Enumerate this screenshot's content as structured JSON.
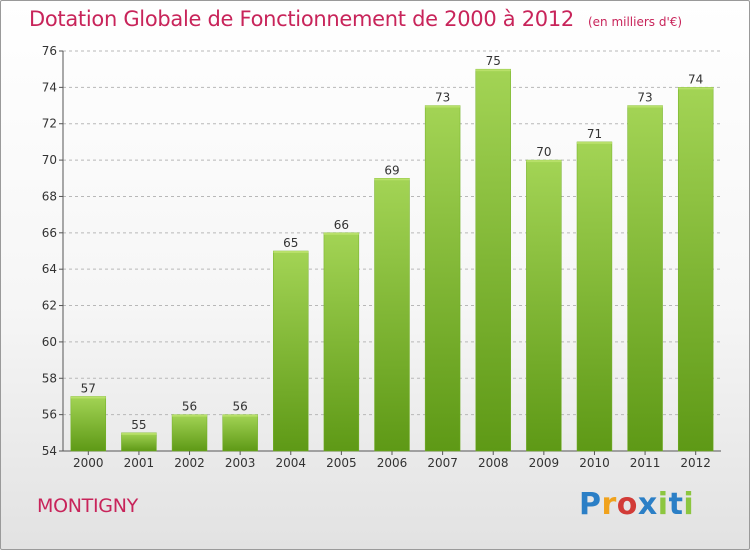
{
  "header": {
    "title": "Dotation Globale de Fonctionnement de 2000 à 2012",
    "unit": "(en milliers d'€)"
  },
  "footer": {
    "commune": "MONTIGNY",
    "logo": "Proxiti"
  },
  "colors": {
    "title": "#c8245a",
    "bar_light": "#9ccf4e",
    "bar_dark": "#5f9a18",
    "grid": "#b8b8b8"
  },
  "chart_data": {
    "type": "bar",
    "categories": [
      "2000",
      "2001",
      "2002",
      "2003",
      "2004",
      "2005",
      "2006",
      "2007",
      "2008",
      "2009",
      "2010",
      "2011",
      "2012"
    ],
    "values": [
      57,
      55,
      56,
      56,
      65,
      66,
      69,
      73,
      75,
      70,
      71,
      73,
      74
    ],
    "title": "Dotation Globale de Fonctionnement de 2000 à 2012",
    "subtitle": "(en milliers d'€)",
    "xlabel": "",
    "ylabel": "",
    "ylim": [
      54,
      76
    ],
    "yticks": [
      54,
      56,
      58,
      60,
      62,
      64,
      66,
      68,
      70,
      72,
      74,
      76
    ],
    "grid": "horizontal dashed",
    "data_labels": true
  }
}
